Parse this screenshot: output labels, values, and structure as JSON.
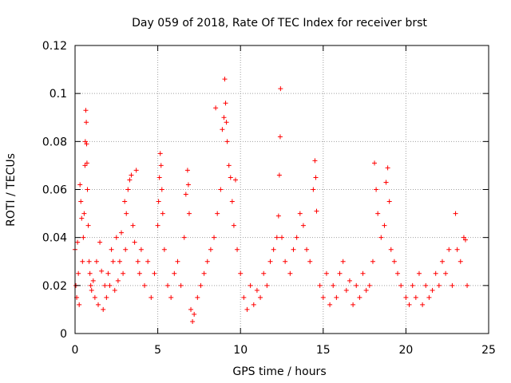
{
  "chart_data": {
    "type": "scatter",
    "title": "Day 059 of 2018, Rate Of TEC Index for receiver brst",
    "xlabel": "GPS time / hours",
    "ylabel": "ROTI / TECUs",
    "xlim": [
      0,
      25
    ],
    "ylim": [
      0,
      0.12
    ],
    "xticks": [
      0,
      5,
      10,
      15,
      20,
      25
    ],
    "xtick_labels": [
      "0",
      "5",
      "10",
      "15",
      "20",
      "25"
    ],
    "yticks": [
      0,
      0.02,
      0.04,
      0.06,
      0.08,
      0.1,
      0.12
    ],
    "ytick_labels": [
      "0",
      "0.02",
      "0.04",
      "0.06",
      "0.08",
      "0.1",
      "0.12"
    ],
    "grid": true,
    "marker": "plus",
    "color": "#ff0000",
    "series": [
      {
        "name": "ROTI",
        "points": [
          [
            0.0,
            0.035
          ],
          [
            0.05,
            0.02
          ],
          [
            0.1,
            0.015
          ],
          [
            0.15,
            0.038
          ],
          [
            0.2,
            0.025
          ],
          [
            0.25,
            0.012
          ],
          [
            0.3,
            0.062
          ],
          [
            0.35,
            0.055
          ],
          [
            0.4,
            0.048
          ],
          [
            0.45,
            0.03
          ],
          [
            0.5,
            0.04
          ],
          [
            0.55,
            0.05
          ],
          [
            0.6,
            0.07
          ],
          [
            0.62,
            0.08
          ],
          [
            0.65,
            0.093
          ],
          [
            0.68,
            0.088
          ],
          [
            0.7,
            0.079
          ],
          [
            0.72,
            0.071
          ],
          [
            0.75,
            0.06
          ],
          [
            0.8,
            0.045
          ],
          [
            0.85,
            0.03
          ],
          [
            0.9,
            0.025
          ],
          [
            0.95,
            0.02
          ],
          [
            1.0,
            0.018
          ],
          [
            1.1,
            0.022
          ],
          [
            1.2,
            0.015
          ],
          [
            1.3,
            0.03
          ],
          [
            1.4,
            0.012
          ],
          [
            1.5,
            0.038
          ],
          [
            1.6,
            0.026
          ],
          [
            1.7,
            0.01
          ],
          [
            1.8,
            0.02
          ],
          [
            1.9,
            0.015
          ],
          [
            2.0,
            0.025
          ],
          [
            2.1,
            0.02
          ],
          [
            2.2,
            0.035
          ],
          [
            2.3,
            0.03
          ],
          [
            2.4,
            0.018
          ],
          [
            2.5,
            0.04
          ],
          [
            2.6,
            0.022
          ],
          [
            2.7,
            0.03
          ],
          [
            2.8,
            0.042
          ],
          [
            2.9,
            0.025
          ],
          [
            3.0,
            0.055
          ],
          [
            3.05,
            0.035
          ],
          [
            3.1,
            0.05
          ],
          [
            3.2,
            0.06
          ],
          [
            3.3,
            0.064
          ],
          [
            3.4,
            0.066
          ],
          [
            3.5,
            0.045
          ],
          [
            3.6,
            0.038
          ],
          [
            3.7,
            0.068
          ],
          [
            3.8,
            0.03
          ],
          [
            3.9,
            0.025
          ],
          [
            4.0,
            0.035
          ],
          [
            4.2,
            0.02
          ],
          [
            4.4,
            0.03
          ],
          [
            4.6,
            0.015
          ],
          [
            4.8,
            0.025
          ],
          [
            5.0,
            0.045
          ],
          [
            5.05,
            0.055
          ],
          [
            5.1,
            0.065
          ],
          [
            5.15,
            0.075
          ],
          [
            5.2,
            0.07
          ],
          [
            5.25,
            0.06
          ],
          [
            5.3,
            0.05
          ],
          [
            5.4,
            0.035
          ],
          [
            5.6,
            0.02
          ],
          [
            5.8,
            0.015
          ],
          [
            6.0,
            0.025
          ],
          [
            6.2,
            0.03
          ],
          [
            6.4,
            0.02
          ],
          [
            6.6,
            0.04
          ],
          [
            6.7,
            0.058
          ],
          [
            6.8,
            0.068
          ],
          [
            6.85,
            0.062
          ],
          [
            6.9,
            0.05
          ],
          [
            7.0,
            0.01
          ],
          [
            7.1,
            0.005
          ],
          [
            7.2,
            0.008
          ],
          [
            7.4,
            0.015
          ],
          [
            7.6,
            0.02
          ],
          [
            7.8,
            0.025
          ],
          [
            8.0,
            0.03
          ],
          [
            8.2,
            0.035
          ],
          [
            8.4,
            0.04
          ],
          [
            8.5,
            0.094
          ],
          [
            8.6,
            0.05
          ],
          [
            8.8,
            0.06
          ],
          [
            8.9,
            0.085
          ],
          [
            9.0,
            0.09
          ],
          [
            9.05,
            0.106
          ],
          [
            9.1,
            0.096
          ],
          [
            9.15,
            0.088
          ],
          [
            9.2,
            0.08
          ],
          [
            9.3,
            0.07
          ],
          [
            9.4,
            0.065
          ],
          [
            9.5,
            0.055
          ],
          [
            9.6,
            0.045
          ],
          [
            9.7,
            0.064
          ],
          [
            9.8,
            0.035
          ],
          [
            10.0,
            0.025
          ],
          [
            10.2,
            0.015
          ],
          [
            10.4,
            0.01
          ],
          [
            10.6,
            0.02
          ],
          [
            10.8,
            0.012
          ],
          [
            11.0,
            0.018
          ],
          [
            11.2,
            0.015
          ],
          [
            11.4,
            0.025
          ],
          [
            11.6,
            0.02
          ],
          [
            11.8,
            0.03
          ],
          [
            12.0,
            0.035
          ],
          [
            12.2,
            0.04
          ],
          [
            12.3,
            0.049
          ],
          [
            12.35,
            0.066
          ],
          [
            12.4,
            0.082
          ],
          [
            12.42,
            0.102
          ],
          [
            12.5,
            0.04
          ],
          [
            12.7,
            0.03
          ],
          [
            13.0,
            0.025
          ],
          [
            13.2,
            0.035
          ],
          [
            13.4,
            0.04
          ],
          [
            13.6,
            0.05
          ],
          [
            13.8,
            0.045
          ],
          [
            14.0,
            0.035
          ],
          [
            14.2,
            0.03
          ],
          [
            14.4,
            0.06
          ],
          [
            14.5,
            0.072
          ],
          [
            14.55,
            0.065
          ],
          [
            14.6,
            0.051
          ],
          [
            14.8,
            0.02
          ],
          [
            15.0,
            0.015
          ],
          [
            15.2,
            0.025
          ],
          [
            15.4,
            0.012
          ],
          [
            15.6,
            0.02
          ],
          [
            15.8,
            0.015
          ],
          [
            16.0,
            0.025
          ],
          [
            16.2,
            0.03
          ],
          [
            16.4,
            0.018
          ],
          [
            16.6,
            0.022
          ],
          [
            16.8,
            0.012
          ],
          [
            17.0,
            0.02
          ],
          [
            17.2,
            0.015
          ],
          [
            17.4,
            0.025
          ],
          [
            17.6,
            0.018
          ],
          [
            17.8,
            0.02
          ],
          [
            18.0,
            0.03
          ],
          [
            18.1,
            0.071
          ],
          [
            18.2,
            0.06
          ],
          [
            18.3,
            0.05
          ],
          [
            18.5,
            0.04
          ],
          [
            18.7,
            0.045
          ],
          [
            18.8,
            0.063
          ],
          [
            18.9,
            0.069
          ],
          [
            19.0,
            0.055
          ],
          [
            19.1,
            0.035
          ],
          [
            19.3,
            0.03
          ],
          [
            19.5,
            0.025
          ],
          [
            19.7,
            0.02
          ],
          [
            20.0,
            0.015
          ],
          [
            20.2,
            0.012
          ],
          [
            20.4,
            0.02
          ],
          [
            20.6,
            0.015
          ],
          [
            20.8,
            0.025
          ],
          [
            21.0,
            0.012
          ],
          [
            21.2,
            0.02
          ],
          [
            21.4,
            0.015
          ],
          [
            21.6,
            0.018
          ],
          [
            21.8,
            0.025
          ],
          [
            22.0,
            0.02
          ],
          [
            22.2,
            0.03
          ],
          [
            22.4,
            0.025
          ],
          [
            22.6,
            0.035
          ],
          [
            22.8,
            0.02
          ],
          [
            23.0,
            0.05
          ],
          [
            23.1,
            0.035
          ],
          [
            23.3,
            0.03
          ],
          [
            23.5,
            0.04
          ],
          [
            23.6,
            0.039
          ],
          [
            23.7,
            0.02
          ]
        ]
      }
    ]
  }
}
